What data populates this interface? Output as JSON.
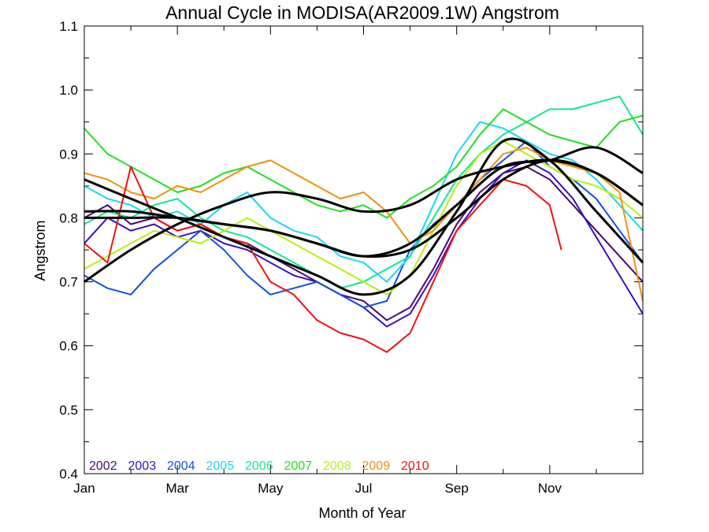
{
  "chart_data": {
    "type": "line",
    "title": "Annual Cycle in MODISA(AR2009.1W) Angstrom",
    "xlabel": "Month of Year",
    "ylabel": "Angstrom",
    "xlim": [
      0,
      12
    ],
    "ylim": [
      0.4,
      1.1
    ],
    "x_ticks": [
      {
        "value": 0,
        "label": "Jan"
      },
      {
        "value": 2,
        "label": "Mar"
      },
      {
        "value": 4,
        "label": "May"
      },
      {
        "value": 6,
        "label": "Jul"
      },
      {
        "value": 8,
        "label": "Sep"
      },
      {
        "value": 10,
        "label": "Nov"
      }
    ],
    "y_ticks": [
      0.4,
      0.5,
      0.6,
      0.7,
      0.8,
      0.9,
      1.0,
      1.1
    ],
    "y_tick_labels": [
      "0.4",
      "0.5",
      "0.6",
      "0.7",
      "0.8",
      "0.9",
      "1.0",
      "1.1"
    ],
    "grid": false,
    "legend_position": "bottom-left inside plot",
    "series": [
      {
        "name": "2002",
        "color": "#4a0a6e",
        "x": [
          0,
          0.5,
          1,
          1.5,
          2,
          2.5,
          3,
          3.5,
          4,
          4.5,
          5,
          5.5,
          6,
          6.5,
          7,
          7.5,
          8,
          8.5,
          9,
          9.5,
          10,
          10.5,
          11,
          11.5,
          12
        ],
        "values": [
          0.8,
          0.82,
          0.79,
          0.8,
          0.78,
          0.79,
          0.77,
          0.76,
          0.74,
          0.72,
          0.7,
          0.68,
          0.67,
          0.64,
          0.66,
          0.72,
          0.79,
          0.84,
          0.87,
          0.88,
          0.86,
          0.82,
          0.78,
          0.74,
          0.7
        ]
      },
      {
        "name": "2003",
        "color": "#3a10c0",
        "x": [
          0,
          0.5,
          1,
          1.5,
          2,
          2.5,
          3,
          3.5,
          4,
          4.5,
          5,
          5.5,
          6,
          6.5,
          7,
          7.5,
          8,
          8.5,
          9,
          9.5,
          10,
          10.5,
          11,
          11.5,
          12
        ],
        "values": [
          0.76,
          0.8,
          0.78,
          0.79,
          0.77,
          0.78,
          0.76,
          0.75,
          0.73,
          0.71,
          0.7,
          0.68,
          0.66,
          0.63,
          0.65,
          0.71,
          0.78,
          0.83,
          0.87,
          0.89,
          0.87,
          0.83,
          0.77,
          0.71,
          0.65
        ]
      },
      {
        "name": "2004",
        "color": "#1050e0",
        "x": [
          0,
          0.5,
          1,
          1.5,
          2,
          2.5,
          3,
          3.5,
          4,
          4.5,
          5,
          5.5,
          6,
          6.5,
          7,
          7.5,
          8,
          8.5,
          9,
          9.5,
          10,
          10.5,
          11,
          11.5,
          12
        ],
        "values": [
          0.71,
          0.69,
          0.68,
          0.72,
          0.75,
          0.78,
          0.75,
          0.71,
          0.68,
          0.69,
          0.7,
          0.68,
          0.66,
          0.67,
          0.75,
          0.79,
          0.82,
          0.86,
          0.89,
          0.92,
          0.88,
          0.86,
          0.83,
          0.78,
          0.73
        ]
      },
      {
        "name": "2005",
        "color": "#18d8f0",
        "x": [
          0,
          0.5,
          1,
          1.5,
          2,
          2.5,
          3,
          3.5,
          4,
          4.5,
          5,
          5.5,
          6,
          6.5,
          7,
          7.5,
          8,
          8.5,
          9,
          9.5,
          10,
          10.5,
          11,
          11.5,
          12
        ],
        "values": [
          0.85,
          0.83,
          0.82,
          0.8,
          0.81,
          0.79,
          0.82,
          0.84,
          0.8,
          0.78,
          0.77,
          0.74,
          0.73,
          0.7,
          0.74,
          0.82,
          0.9,
          0.95,
          0.94,
          0.92,
          0.9,
          0.89,
          0.86,
          0.82,
          0.78
        ]
      },
      {
        "name": "2006",
        "color": "#10e890",
        "x": [
          0,
          0.5,
          1,
          1.5,
          2,
          2.5,
          3,
          3.5,
          4,
          4.5,
          5,
          5.5,
          6,
          6.5,
          7,
          7.5,
          8,
          8.5,
          9,
          9.5,
          10,
          10.5,
          11,
          11.5,
          12
        ],
        "values": [
          0.79,
          0.81,
          0.8,
          0.82,
          0.83,
          0.8,
          0.78,
          0.77,
          0.75,
          0.73,
          0.71,
          0.69,
          0.7,
          0.72,
          0.74,
          0.8,
          0.86,
          0.9,
          0.93,
          0.95,
          0.97,
          0.97,
          0.98,
          0.99,
          0.93
        ]
      },
      {
        "name": "2007",
        "color": "#20e020",
        "x": [
          0,
          0.5,
          1,
          1.5,
          2,
          2.5,
          3,
          3.5,
          4,
          4.5,
          5,
          5.5,
          6,
          6.5,
          7,
          7.5,
          8,
          8.5,
          9,
          9.5,
          10,
          10.5,
          11,
          11.5,
          12
        ],
        "values": [
          0.94,
          0.9,
          0.88,
          0.86,
          0.84,
          0.85,
          0.87,
          0.88,
          0.86,
          0.84,
          0.82,
          0.81,
          0.82,
          0.8,
          0.83,
          0.85,
          0.88,
          0.93,
          0.97,
          0.95,
          0.93,
          0.92,
          0.91,
          0.95,
          0.96
        ]
      },
      {
        "name": "2008",
        "color": "#b8f010",
        "x": [
          0,
          0.5,
          1,
          1.5,
          2,
          2.5,
          3,
          3.5,
          4,
          4.5,
          5,
          5.5,
          6,
          6.5,
          7,
          7.5,
          8,
          8.5,
          9,
          9.5,
          10,
          10.5,
          11,
          11.5,
          12
        ],
        "values": [
          0.72,
          0.74,
          0.76,
          0.78,
          0.77,
          0.76,
          0.78,
          0.8,
          0.78,
          0.76,
          0.74,
          0.72,
          0.7,
          0.68,
          0.71,
          0.78,
          0.85,
          0.9,
          0.92,
          0.9,
          0.88,
          0.86,
          0.85,
          0.83,
          0.8
        ]
      },
      {
        "name": "2009",
        "color": "#f09010",
        "x": [
          0,
          0.5,
          1,
          1.5,
          2,
          2.5,
          3,
          3.5,
          4,
          4.5,
          5,
          5.5,
          6,
          6.5,
          7,
          7.5,
          8,
          8.5,
          9,
          9.5,
          10,
          10.5,
          11,
          11.5,
          12
        ],
        "values": [
          0.87,
          0.86,
          0.84,
          0.83,
          0.85,
          0.84,
          0.86,
          0.88,
          0.89,
          0.87,
          0.85,
          0.83,
          0.84,
          0.81,
          0.76,
          0.78,
          0.82,
          0.86,
          0.9,
          0.91,
          0.89,
          0.88,
          0.87,
          0.84,
          0.67
        ]
      },
      {
        "name": "2010",
        "color": "#f01010",
        "x": [
          0,
          0.5,
          1,
          1.5,
          2,
          2.5,
          3,
          3.5,
          4,
          4.5,
          5,
          5.5,
          6,
          6.5,
          7,
          7.5,
          8,
          8.5,
          9,
          9.5,
          10,
          10.25
        ],
        "values": [
          0.76,
          0.73,
          0.88,
          0.8,
          0.78,
          0.79,
          0.77,
          0.76,
          0.7,
          0.68,
          0.64,
          0.62,
          0.61,
          0.59,
          0.62,
          0.7,
          0.78,
          0.82,
          0.86,
          0.85,
          0.82,
          0.75
        ]
      }
    ],
    "fit_curves": [
      {
        "color": "#000000",
        "x": [
          0,
          1,
          2,
          3,
          4,
          5,
          6,
          7,
          8,
          9,
          10,
          11,
          12
        ],
        "values": [
          0.7,
          0.75,
          0.79,
          0.82,
          0.84,
          0.83,
          0.81,
          0.82,
          0.86,
          0.88,
          0.89,
          0.87,
          0.82
        ]
      },
      {
        "color": "#000000",
        "x": [
          0,
          1,
          2,
          3,
          4,
          5,
          6,
          7,
          8,
          9,
          10,
          11,
          12
        ],
        "values": [
          0.86,
          0.83,
          0.8,
          0.77,
          0.74,
          0.71,
          0.68,
          0.71,
          0.81,
          0.92,
          0.89,
          0.81,
          0.73
        ]
      },
      {
        "color": "#000000",
        "x": [
          0,
          1,
          2,
          3,
          4,
          5,
          6,
          7,
          8,
          9,
          10,
          11,
          12
        ],
        "values": [
          0.81,
          0.81,
          0.8,
          0.79,
          0.78,
          0.76,
          0.74,
          0.76,
          0.82,
          0.88,
          0.89,
          0.91,
          0.87
        ]
      },
      {
        "color": "#000000",
        "x": [
          0,
          1,
          2,
          3,
          4,
          5,
          6,
          7,
          8,
          9,
          10,
          11,
          12
        ],
        "values": [
          0.8,
          0.8,
          0.8,
          0.79,
          0.78,
          0.76,
          0.74,
          0.75,
          0.8,
          0.86,
          0.89,
          0.87,
          0.82
        ]
      }
    ]
  }
}
